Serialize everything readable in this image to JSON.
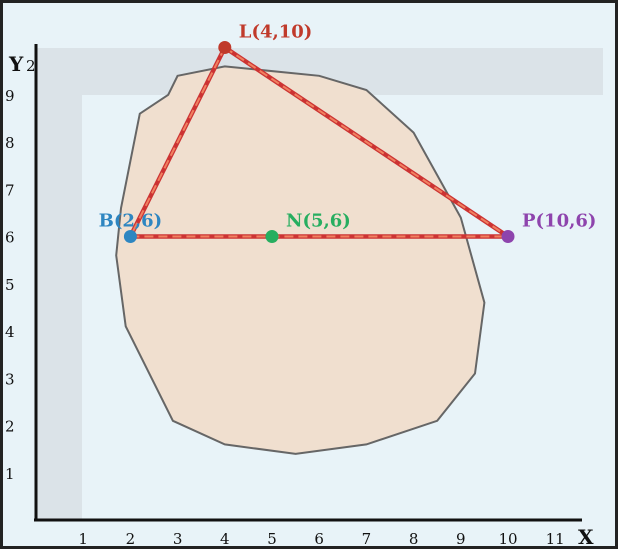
{
  "diagram": {
    "background_color": "#e8f3f8",
    "band_color": "#dbe3e8",
    "axes": {
      "x_label": "X",
      "y_label": "Y",
      "x_range": [
        0,
        12
      ],
      "y_range": [
        0,
        10
      ],
      "x_ticks": [
        "1",
        "2",
        "3",
        "4",
        "5",
        "6",
        "7",
        "8",
        "9",
        "10",
        "11"
      ],
      "y_ticks": [
        "1",
        "2",
        "3",
        "4",
        "5",
        "6",
        "7",
        "8",
        "9"
      ],
      "y_top_tick_partial": "2"
    },
    "region": {
      "fill": "#f0dfcf",
      "stroke": "#666666",
      "vertices": [
        [
          3.0,
          9.4
        ],
        [
          4.0,
          9.6
        ],
        [
          6.0,
          9.4
        ],
        [
          7.0,
          9.1
        ],
        [
          8.0,
          8.2
        ],
        [
          9.0,
          6.4
        ],
        [
          9.5,
          4.6
        ],
        [
          9.3,
          3.1
        ],
        [
          8.5,
          2.1
        ],
        [
          7.0,
          1.6
        ],
        [
          5.5,
          1.4
        ],
        [
          4.0,
          1.6
        ],
        [
          2.9,
          2.1
        ],
        [
          1.9,
          4.1
        ],
        [
          1.7,
          5.6
        ],
        [
          1.8,
          6.6
        ],
        [
          2.0,
          7.6
        ],
        [
          2.2,
          8.6
        ],
        [
          2.8,
          9.0
        ]
      ]
    },
    "segment_style": {
      "outer": "#cc3333",
      "inner": "#f08060"
    },
    "segments": [
      [
        "L",
        "B"
      ],
      [
        "L",
        "P"
      ],
      [
        "B",
        "P"
      ]
    ],
    "points": [
      {
        "id": "L",
        "label": "L(4,10)",
        "x": 4,
        "y": 10,
        "color": "#c03a2b",
        "label_pos": "above-right"
      },
      {
        "id": "B",
        "label": "B(2,6)",
        "x": 2,
        "y": 6,
        "color": "#2e86c1",
        "label_pos": "above"
      },
      {
        "id": "N",
        "label": "N(5,6)",
        "x": 5,
        "y": 6,
        "color": "#27ae60",
        "label_pos": "above-right"
      },
      {
        "id": "P",
        "label": "P(10,6)",
        "x": 10,
        "y": 6,
        "color": "#8e44ad",
        "label_pos": "right"
      }
    ]
  }
}
